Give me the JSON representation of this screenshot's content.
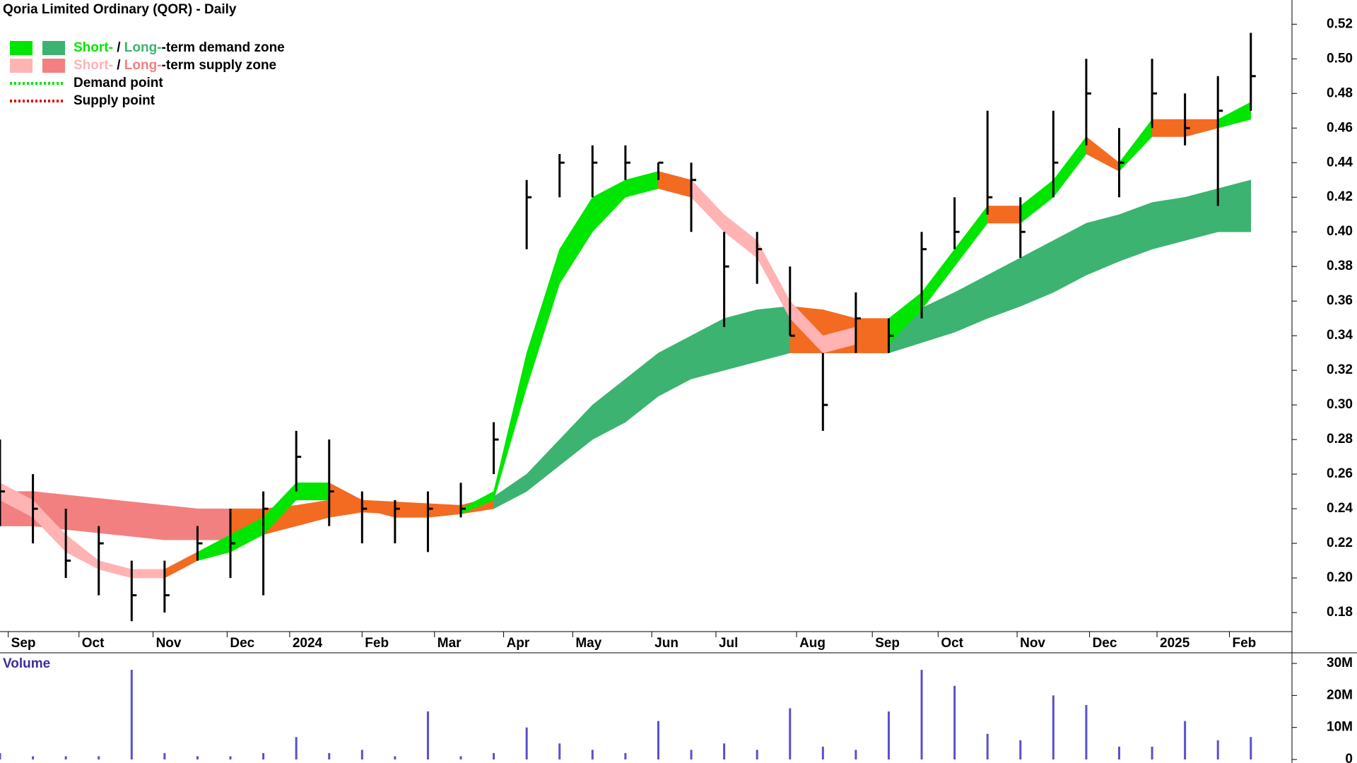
{
  "chart_data": [
    {
      "type": "ohlc",
      "title": "Qoria Limited Ordinary (QOR) - Daily",
      "legend": [
        {
          "short": "Short-",
          "sep": " / ",
          "long": "Long-",
          "rest": "-term demand zone",
          "short_color": "#00e600",
          "long_color": "#3cb371"
        },
        {
          "short": "Short-",
          "sep": " / ",
          "long": "Long-",
          "rest": "-term supply zone",
          "short_color": "#ffb3b3",
          "long_color": "#f28080"
        },
        {
          "text": "Demand point",
          "color": "#00e600"
        },
        {
          "text": "Supply point",
          "color": "#e00000"
        }
      ],
      "x": [
        0,
        2,
        4,
        6,
        8,
        10,
        12,
        14,
        16,
        18,
        20,
        22,
        24,
        26,
        28,
        30,
        32,
        34,
        36,
        38,
        40,
        42,
        44,
        46,
        48,
        50,
        52,
        54,
        56,
        58,
        60,
        62,
        64,
        66,
        68,
        70,
        72,
        74,
        76
      ],
      "high": [
        0.28,
        0.26,
        0.24,
        0.23,
        0.21,
        0.21,
        0.23,
        0.24,
        0.25,
        0.285,
        0.28,
        0.25,
        0.245,
        0.25,
        0.255,
        0.29,
        0.43,
        0.445,
        0.45,
        0.45,
        0.44,
        0.44,
        0.4,
        0.4,
        0.38,
        0.33,
        0.365,
        0.35,
        0.4,
        0.42,
        0.47,
        0.42,
        0.47,
        0.5,
        0.46,
        0.5,
        0.48,
        0.49,
        0.515
      ],
      "low": [
        0.23,
        0.22,
        0.2,
        0.19,
        0.175,
        0.18,
        0.21,
        0.2,
        0.19,
        0.25,
        0.23,
        0.22,
        0.22,
        0.215,
        0.235,
        0.26,
        0.39,
        0.42,
        0.42,
        0.43,
        0.43,
        0.4,
        0.345,
        0.37,
        0.34,
        0.285,
        0.33,
        0.33,
        0.35,
        0.39,
        0.41,
        0.385,
        0.42,
        0.45,
        0.42,
        0.46,
        0.45,
        0.415,
        0.47
      ],
      "close": [
        0.25,
        0.24,
        0.21,
        0.22,
        0.19,
        0.19,
        0.22,
        0.22,
        0.24,
        0.27,
        0.25,
        0.24,
        0.24,
        0.24,
        0.24,
        0.28,
        0.42,
        0.44,
        0.44,
        0.44,
        0.44,
        0.43,
        0.38,
        0.39,
        0.34,
        0.3,
        0.35,
        0.34,
        0.39,
        0.4,
        0.42,
        0.4,
        0.44,
        0.48,
        0.44,
        0.48,
        0.46,
        0.47,
        0.49
      ],
      "zones": [
        {
          "upper": [
            0.25,
            0.25,
            0.248,
            0.246,
            0.244,
            0.242,
            0.24,
            0.24,
            0.24,
            0.242,
            0.245,
            0.245,
            0.244,
            0.243,
            0.242,
            0.247,
            0.26,
            0.28,
            0.3,
            0.315,
            0.33,
            0.34,
            0.35,
            0.355,
            0.357,
            0.355,
            0.35,
            0.35,
            0.356,
            0.365,
            0.375,
            0.385,
            0.395,
            0.405,
            0.41,
            0.417,
            0.42,
            0.425,
            0.43
          ],
          "lower": [
            0.23,
            0.23,
            0.228,
            0.226,
            0.224,
            0.222,
            0.222,
            0.222,
            0.225,
            0.23,
            0.235,
            0.238,
            0.237,
            0.237,
            0.237,
            0.24,
            0.25,
            0.265,
            0.28,
            0.29,
            0.305,
            0.315,
            0.32,
            0.325,
            0.33,
            0.33,
            0.33,
            0.33,
            0.336,
            0.342,
            0.35,
            0.357,
            0.365,
            0.375,
            0.383,
            0.39,
            0.395,
            0.4,
            0.4
          ],
          "segment_colors": [
            "#f28080",
            "#f28080",
            "#f28080",
            "#f28080",
            "#f28080",
            "#f28080",
            "#f28080",
            "#f26b21",
            "#f26b21",
            "#f26b21",
            "#f26b21",
            "#f26b21",
            "#f26b21",
            "#f26b21",
            "#f26b21",
            "#3cb371",
            "#3cb371",
            "#3cb371",
            "#3cb371",
            "#3cb371",
            "#3cb371",
            "#3cb371",
            "#3cb371",
            "#3cb371",
            "#f26b21",
            "#f26b21",
            "#f26b21",
            "#3cb371",
            "#3cb371",
            "#3cb371",
            "#3cb371",
            "#3cb371",
            "#3cb371",
            "#3cb371",
            "#3cb371",
            "#3cb371",
            "#3cb371",
            "#3cb371"
          ]
        },
        {
          "upper": [
            0.255,
            0.245,
            0.225,
            0.21,
            0.205,
            0.205,
            0.215,
            0.225,
            0.235,
            0.255,
            0.255,
            0.245,
            0.24,
            0.24,
            0.24,
            0.25,
            0.33,
            0.39,
            0.42,
            0.43,
            0.435,
            0.43,
            0.41,
            0.395,
            0.36,
            0.34,
            0.345,
            0.35,
            0.365,
            0.39,
            0.415,
            0.415,
            0.43,
            0.455,
            0.44,
            0.465,
            0.465,
            0.465,
            0.475
          ],
          "lower": [
            0.245,
            0.235,
            0.215,
            0.205,
            0.2,
            0.2,
            0.21,
            0.215,
            0.225,
            0.245,
            0.245,
            0.24,
            0.235,
            0.235,
            0.237,
            0.245,
            0.31,
            0.37,
            0.4,
            0.42,
            0.425,
            0.42,
            0.4,
            0.385,
            0.35,
            0.33,
            0.335,
            0.335,
            0.355,
            0.38,
            0.405,
            0.405,
            0.42,
            0.445,
            0.435,
            0.455,
            0.455,
            0.46,
            0.465
          ],
          "segment_colors": [
            "#ffb3b3",
            "#ffb3b3",
            "#ffb3b3",
            "#ffb3b3",
            "#ffb3b3",
            "#f26b21",
            "#00e600",
            "#00e600",
            "#00e600",
            "#00e600",
            "#f26b21",
            "#f26b21",
            "#f26b21",
            "#f26b21",
            "#00e600",
            "#00e600",
            "#00e600",
            "#00e600",
            "#00e600",
            "#00e600",
            "#f26b21",
            "#ffb3b3",
            "#ffb3b3",
            "#ffb3b3",
            "#ffb3b3",
            "#ffb3b3",
            "#f26b21",
            "#00e600",
            "#00e600",
            "#00e600",
            "#f26b21",
            "#00e600",
            "#00e600",
            "#f26b21",
            "#00e600",
            "#f26b21",
            "#f26b21",
            "#00e600"
          ]
        }
      ],
      "xlim": [
        0,
        78.5
      ],
      "xticks": [
        {
          "value": 0.5,
          "label": "Sep"
        },
        {
          "value": 4.8,
          "label": "Oct"
        },
        {
          "value": 9.3,
          "label": "Nov"
        },
        {
          "value": 13.8,
          "label": "Dec"
        },
        {
          "value": 17.6,
          "label": "2024"
        },
        {
          "value": 22,
          "label": "Feb"
        },
        {
          "value": 26.4,
          "label": "Mar"
        },
        {
          "value": 30.6,
          "label": "Apr"
        },
        {
          "value": 34.8,
          "label": "May"
        },
        {
          "value": 39.6,
          "label": "Jun"
        },
        {
          "value": 43.5,
          "label": "Jul"
        },
        {
          "value": 48.4,
          "label": "Aug"
        },
        {
          "value": 53,
          "label": "Sep"
        },
        {
          "value": 57,
          "label": "Oct"
        },
        {
          "value": 61.8,
          "label": "Nov"
        },
        {
          "value": 66.2,
          "label": "Dec"
        },
        {
          "value": 70.3,
          "label": "2025"
        },
        {
          "value": 74.7,
          "label": "Feb"
        }
      ],
      "ylim": [
        0.169,
        0.534
      ],
      "yticks": [
        0.18,
        {
          "value": 0.2,
          "label": "0.20"
        },
        0.22,
        0.24,
        0.26,
        0.28,
        {
          "value": 0.3,
          "label": "0.30"
        },
        0.32,
        0.34,
        0.36,
        0.38,
        {
          "value": 0.4,
          "label": "0.40"
        },
        0.42,
        0.44,
        0.46,
        0.48,
        {
          "value": 0.5,
          "label": "0.50"
        },
        0.52
      ],
      "color": "#000000"
    },
    {
      "type": "bar",
      "title": "Volume",
      "x": [
        0,
        2,
        4,
        6,
        8,
        10,
        12,
        14,
        16,
        18,
        20,
        22,
        24,
        26,
        28,
        30,
        32,
        34,
        36,
        38,
        40,
        42,
        44,
        46,
        48,
        50,
        52,
        54,
        56,
        58,
        60,
        62,
        64,
        66,
        68,
        70,
        72,
        74,
        76
      ],
      "values": [
        2,
        1,
        1,
        1,
        28,
        2,
        1,
        1,
        2,
        7,
        2,
        3,
        1,
        15,
        1,
        2,
        10,
        5,
        3,
        2,
        12,
        3,
        5,
        3,
        16,
        4,
        3,
        15,
        28,
        23,
        8,
        6,
        20,
        17,
        4,
        4,
        12,
        6,
        7
      ],
      "xlim": [
        0,
        78.5
      ],
      "ylim": [
        0,
        32
      ],
      "yticks": [
        0,
        {
          "value": 10,
          "label": "10M"
        },
        {
          "value": 20,
          "label": "20M"
        },
        {
          "value": 30,
          "label": "30M"
        }
      ],
      "color": "#5a4fcf"
    }
  ]
}
